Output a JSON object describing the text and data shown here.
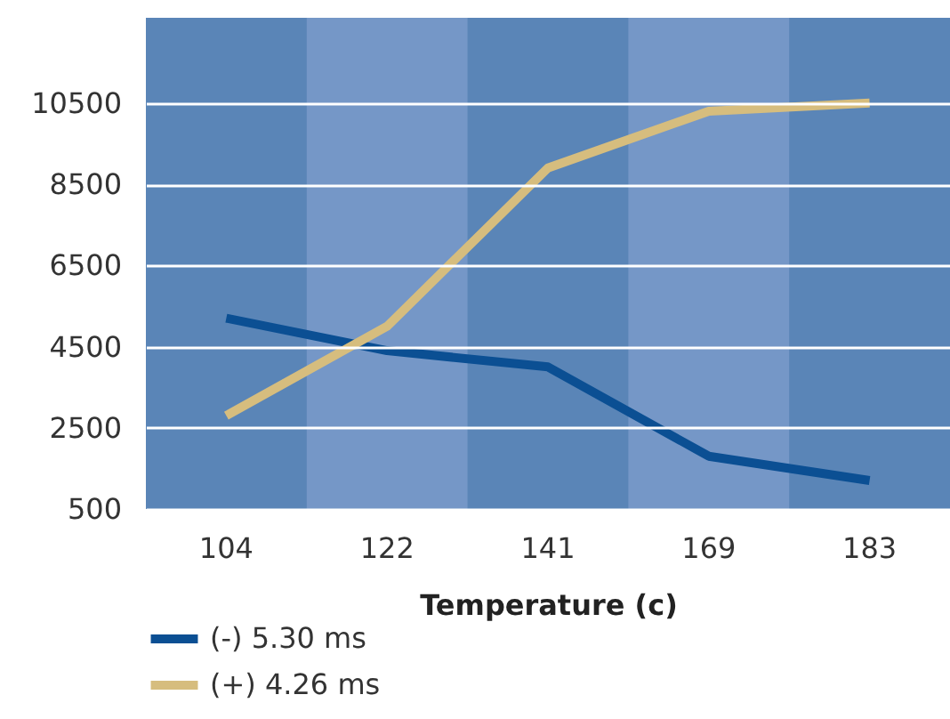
{
  "chart_data": {
    "type": "line",
    "xlabel": "Temperature (c)",
    "categories": [
      "104",
      "122",
      "141",
      "169",
      "183"
    ],
    "series": [
      {
        "name": "(-) 5.30 ms",
        "color": "#0b4f93",
        "values": [
          5200,
          4400,
          4000,
          1800,
          1200
        ]
      },
      {
        "name": "(+) 4.26 ms",
        "color": "#d6bd7e",
        "values": [
          2800,
          5000,
          8900,
          10300,
          10500
        ]
      }
    ],
    "ylim": [
      500,
      12600
    ],
    "yticks": [
      500,
      2500,
      4500,
      6500,
      8500,
      10500
    ],
    "grid": "y",
    "legend": "bottom left",
    "line_style": "solid",
    "marker": "none",
    "bands": [
      {
        "axis": "x",
        "from": "122",
        "to": "122",
        "color": "#7597c7"
      },
      {
        "axis": "x",
        "from": "169",
        "to": "169",
        "color": "#7597c7"
      }
    ]
  }
}
